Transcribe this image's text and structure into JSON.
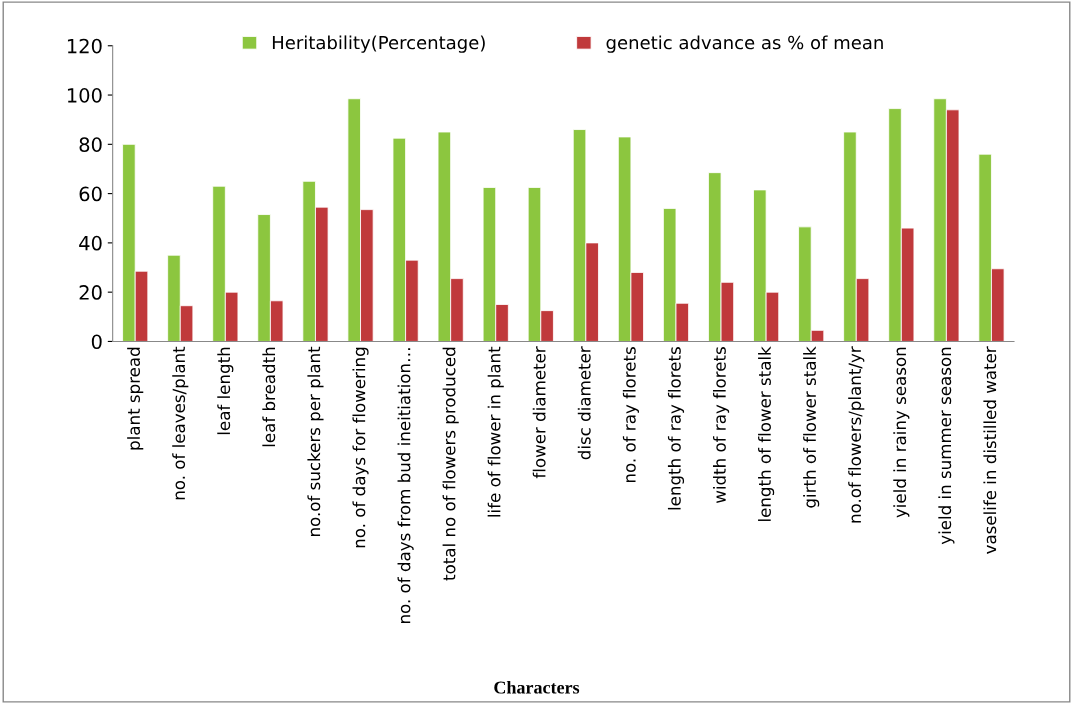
{
  "chart_data": {
    "type": "bar",
    "xlabel": "Characters",
    "categories": [
      "plant spread",
      "no. of leaves/plant",
      "leaf length",
      "leaf breadth",
      "no.of suckers per plant",
      "no. of days for flowering",
      "no. of days from bud ineitiation…",
      "total no of flowers produced",
      "life of flower in plant",
      "flower diameter",
      "disc diameter",
      "no. of ray florets",
      "length of ray florets",
      "width of ray florets",
      "length of flower stalk",
      "girth of flower stalk",
      "no.of flowers/plant/yr",
      "yield in rainy season",
      "yield in summer season",
      "vaselife in distilled water"
    ],
    "series": [
      {
        "name": "Heritability(Percentage)",
        "color": "#8cc63f",
        "values": [
          80,
          35,
          63,
          51.5,
          65,
          98.5,
          82.5,
          85,
          62.5,
          62.5,
          86,
          83,
          54,
          68.5,
          61.5,
          46.5,
          85,
          94.5,
          98.5,
          76
        ]
      },
      {
        "name": "genetic advance as % of mean",
        "color": "#c0393b",
        "values": [
          28.5,
          14.5,
          20,
          16.5,
          54.5,
          53.5,
          33,
          25.5,
          15,
          12.5,
          40,
          28,
          15.5,
          24,
          20,
          4.5,
          25.5,
          46,
          94,
          29.5
        ]
      }
    ],
    "ylim": [
      0,
      120
    ],
    "yticks": [
      0,
      20,
      40,
      60,
      80,
      100,
      120
    ],
    "grid": false,
    "legend": "top"
  }
}
